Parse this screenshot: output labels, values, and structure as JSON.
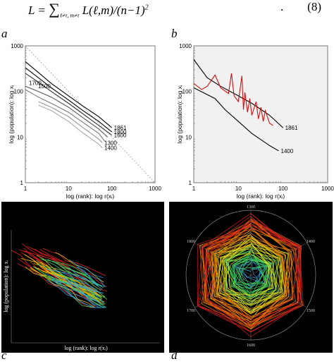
{
  "equation": {
    "lhs": "L",
    "sum_symbol": "∑",
    "sum_index": "ℓ≠τ, m≠τ",
    "body": "L(ℓ,m)/(n−1)",
    "exponent": "2",
    "trailing": ".",
    "number": "(8)"
  },
  "panels": {
    "a": {
      "letter": "a"
    },
    "b": {
      "letter": "b"
    },
    "c": {
      "letter": "c"
    },
    "d": {
      "letter": "d"
    }
  },
  "chart_data": [
    {
      "panel": "a",
      "type": "line",
      "title": "",
      "xlabel": "log (rank): log r(xᵢ)",
      "ylabel": "log (population): log xᵢ",
      "xscale": "log",
      "yscale": "log",
      "xlim": [
        1,
        1000
      ],
      "ylim": [
        1,
        1000
      ],
      "xticks": [
        "1",
        "10",
        "100",
        "1000"
      ],
      "yticks": [
        "1",
        "10",
        "100",
        "1000"
      ],
      "grid": false,
      "series": [
        {
          "name": "1861",
          "color": "#000000",
          "points": [
            [
              1,
              450
            ],
            [
              2,
              260
            ],
            [
              4,
              150
            ],
            [
              10,
              80
            ],
            [
              20,
              50
            ],
            [
              50,
              28
            ],
            [
              100,
              16
            ]
          ]
        },
        {
          "name": "1800",
          "color": "#000000",
          "points": [
            [
              1,
              330
            ],
            [
              2,
              200
            ],
            [
              4,
              120
            ],
            [
              10,
              65
            ],
            [
              20,
              40
            ],
            [
              50,
              22
            ],
            [
              100,
              13
            ]
          ]
        },
        {
          "name": "1600",
          "color": "#333333",
          "points": [
            [
              1,
              250
            ],
            [
              2,
              160
            ],
            [
              4,
              100
            ],
            [
              10,
              55
            ],
            [
              20,
              34
            ],
            [
              50,
              18
            ],
            [
              100,
              11
            ]
          ]
        },
        {
          "name": "1700",
          "color": "#555555",
          "points": [
            [
              1,
              130
            ],
            [
              2,
              100
            ],
            [
              4,
              75
            ],
            [
              10,
              45
            ],
            [
              20,
              28
            ],
            [
              50,
              15
            ],
            [
              80,
              10
            ]
          ]
        },
        {
          "name": "1500",
          "color": "#777777",
          "points": [
            [
              1,
              110
            ],
            [
              2,
              75
            ],
            [
              4,
              55
            ],
            [
              10,
              35
            ],
            [
              20,
              22
            ],
            [
              50,
              12
            ],
            [
              70,
              8
            ]
          ]
        },
        {
          "name": "1300",
          "color": "#999999",
          "points": [
            [
              2,
              60
            ],
            [
              4,
              45
            ],
            [
              10,
              28
            ],
            [
              20,
              17
            ],
            [
              50,
              9
            ],
            [
              60,
              7.5
            ]
          ]
        },
        {
          "name": "1400",
          "color": "#aaaaaa",
          "points": [
            [
              2,
              50
            ],
            [
              4,
              38
            ],
            [
              10,
              22
            ],
            [
              20,
              13
            ],
            [
              50,
              7
            ],
            [
              60,
              5.8
            ]
          ]
        }
      ],
      "reference_line": {
        "style": "dashed",
        "points": [
          [
            1,
            1000
          ],
          [
            1000,
            1
          ]
        ]
      }
    },
    {
      "panel": "b",
      "type": "line",
      "title": "",
      "xlabel": "log (rank): log r(xᵢ)",
      "ylabel": "log (population): log xᵢ",
      "xscale": "log",
      "yscale": "log",
      "xlim": [
        1,
        1000
      ],
      "ylim": [
        1,
        1000
      ],
      "xticks": [
        "1",
        "10",
        "100",
        "1000"
      ],
      "yticks": [
        "1",
        "10",
        "100",
        "1000"
      ],
      "grid": false,
      "series": [
        {
          "name": "1861",
          "color": "#000000",
          "points": [
            [
              1,
              500
            ],
            [
              2,
              200
            ],
            [
              4,
              130
            ],
            [
              10,
              80
            ],
            [
              20,
              55
            ],
            [
              50,
              30
            ],
            [
              100,
              16
            ]
          ]
        },
        {
          "name": "",
          "color": "#d01010",
          "points": [
            [
              1,
              150
            ],
            [
              1.5,
              110
            ],
            [
              2,
              130
            ],
            [
              3,
              230
            ],
            [
              4,
              120
            ],
            [
              6,
              90
            ],
            [
              7,
              250
            ],
            [
              8,
              80
            ],
            [
              10,
              60
            ],
            [
              12,
              220
            ],
            [
              13,
              40
            ],
            [
              14,
              95
            ],
            [
              16,
              35
            ],
            [
              18,
              70
            ],
            [
              20,
              30
            ],
            [
              25,
              60
            ],
            [
              28,
              25
            ],
            [
              32,
              45
            ],
            [
              36,
              22
            ],
            [
              40,
              38
            ],
            [
              50,
              20
            ],
            [
              60,
              18
            ]
          ]
        },
        {
          "name": "1400",
          "color": "#000000",
          "points": [
            [
              1,
              120
            ],
            [
              3,
              70
            ],
            [
              5,
              40
            ],
            [
              10,
              22
            ],
            [
              20,
              12
            ],
            [
              50,
              6.5
            ],
            [
              80,
              5
            ]
          ]
        }
      ]
    },
    {
      "panel": "c",
      "type": "line",
      "title": "",
      "xlabel": "log (rank): log r(xᵢ)",
      "ylabel": "log (population): log xᵢ",
      "background": "#000000",
      "series": [
        {
          "name": "",
          "color": "#e02020",
          "points": []
        },
        {
          "name": "",
          "color": "#f0c000",
          "points": []
        },
        {
          "name": "",
          "color": "#40d060",
          "points": []
        },
        {
          "name": "",
          "color": "#30a0e0",
          "points": []
        }
      ]
    },
    {
      "panel": "d",
      "type": "radar",
      "title": "",
      "background": "#000000",
      "axis_labels": [
        "1300",
        "1400",
        "1500",
        "1600",
        "1700",
        "1800"
      ],
      "colors": [
        "#e02020",
        "#f08000",
        "#e0e020",
        "#40d060",
        "#30a0e0"
      ]
    }
  ]
}
